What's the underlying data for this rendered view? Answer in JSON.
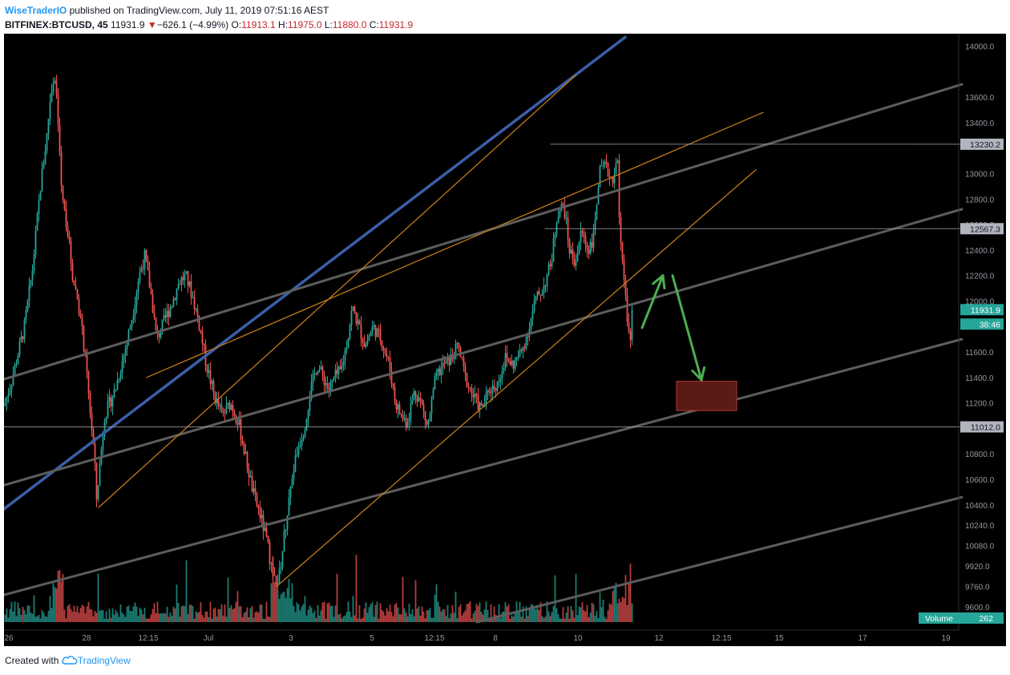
{
  "header": {
    "author": "WiseTraderIO",
    "published_text": "published on TradingView.com, July 11, 2019 07:51:16 AEST",
    "symbol": "BITFINEX:BTCUSD, 45",
    "last": "11931.9",
    "change_arrow": "▼",
    "change": "−626.1 (−4.99%)",
    "o_label": "O:",
    "o_value": "11913.1",
    "h_label": "H:",
    "h_value": "11975.0",
    "l_label": "L:",
    "l_value": "11880.0",
    "c_label": "C:",
    "c_value": "11931.9"
  },
  "footer": {
    "created_with": "Created with",
    "brand": "TradingView",
    "logo_icon": "tradingview-cloud-icon"
  },
  "colors": {
    "background": "#000000",
    "up": "#26a69a",
    "down": "#ef5350",
    "channel_gray": "#5d5d5d",
    "orange": "#c27a1a",
    "blue": "#3a5fa8",
    "arrow": "#4caf50",
    "target_box": "#5a1a16"
  },
  "chart_data": {
    "type": "candlestick",
    "ylim": [
      9480,
      14060
    ],
    "y_ticks": [
      "14000.0",
      "13600.0",
      "13400.0",
      "13000.0",
      "12800.0",
      "12600.0",
      "12400.0",
      "12200.0",
      "12000.0",
      "11800.0",
      "11600.0",
      "11400.0",
      "11200.0",
      "11000.0",
      "10800.0",
      "10600.0",
      "10400.0",
      "10240.0",
      "10080.0",
      "9920.0",
      "9760.0",
      "9600.0"
    ],
    "x_ticks": [
      "26",
      "28",
      "12:15",
      "Jul",
      "3",
      "5",
      "12:15",
      "8",
      "10",
      "12",
      "12:15",
      "15",
      "17",
      "19"
    ],
    "price_labels": [
      {
        "text": "13230.2",
        "value": 13230.2,
        "kind": "level"
      },
      {
        "text": "12567.3",
        "value": 12567.3,
        "kind": "level"
      },
      {
        "text": "11012.0",
        "value": 11012.0,
        "kind": "level"
      },
      {
        "text": "11931.9",
        "value": 11931.9,
        "kind": "last"
      },
      {
        "text": "38:46",
        "kind": "countdown"
      }
    ],
    "volume": {
      "label": "Volume",
      "value": "262"
    },
    "candle_path": [
      [
        0,
        11180
      ],
      [
        10,
        11400
      ],
      [
        25,
        11800
      ],
      [
        35,
        12250
      ],
      [
        45,
        12900
      ],
      [
        53,
        13300
      ],
      [
        58,
        13650
      ],
      [
        62,
        13800
      ],
      [
        66,
        13500
      ],
      [
        72,
        12800
      ],
      [
        78,
        12600
      ],
      [
        85,
        12200
      ],
      [
        92,
        12000
      ],
      [
        100,
        11600
      ],
      [
        106,
        11200
      ],
      [
        112,
        10800
      ],
      [
        115,
        10450
      ],
      [
        125,
        11100
      ],
      [
        138,
        11300
      ],
      [
        150,
        11600
      ],
      [
        160,
        11900
      ],
      [
        168,
        12200
      ],
      [
        175,
        12350
      ],
      [
        183,
        12050
      ],
      [
        190,
        11700
      ],
      [
        200,
        11850
      ],
      [
        210,
        12000
      ],
      [
        218,
        12150
      ],
      [
        226,
        12200
      ],
      [
        234,
        12050
      ],
      [
        242,
        11850
      ],
      [
        252,
        11500
      ],
      [
        262,
        11250
      ],
      [
        272,
        11100
      ],
      [
        282,
        11200
      ],
      [
        292,
        11050
      ],
      [
        300,
        10800
      ],
      [
        310,
        10500
      ],
      [
        320,
        10300
      ],
      [
        328,
        10100
      ],
      [
        335,
        9850
      ],
      [
        342,
        9800
      ],
      [
        350,
        10200
      ],
      [
        358,
        10600
      ],
      [
        366,
        10850
      ],
      [
        374,
        11000
      ],
      [
        382,
        11300
      ],
      [
        390,
        11500
      ],
      [
        398,
        11400
      ],
      [
        405,
        11300
      ],
      [
        412,
        11400
      ],
      [
        420,
        11450
      ],
      [
        428,
        11700
      ],
      [
        434,
        11950
      ],
      [
        442,
        11800
      ],
      [
        450,
        11650
      ],
      [
        460,
        11800
      ],
      [
        470,
        11700
      ],
      [
        480,
        11500
      ],
      [
        488,
        11200
      ],
      [
        495,
        11100
      ],
      [
        502,
        11050
      ],
      [
        512,
        11300
      ],
      [
        520,
        11200
      ],
      [
        528,
        11000
      ],
      [
        538,
        11400
      ],
      [
        548,
        11500
      ],
      [
        558,
        11550
      ],
      [
        566,
        11650
      ],
      [
        575,
        11400
      ],
      [
        585,
        11250
      ],
      [
        595,
        11150
      ],
      [
        605,
        11300
      ],
      [
        615,
        11350
      ],
      [
        625,
        11550
      ],
      [
        635,
        11500
      ],
      [
        645,
        11600
      ],
      [
        655,
        11800
      ],
      [
        662,
        12000
      ],
      [
        672,
        12100
      ],
      [
        682,
        12300
      ],
      [
        690,
        12700
      ],
      [
        698,
        12750
      ],
      [
        705,
        12400
      ],
      [
        712,
        12300
      ],
      [
        720,
        12550
      ],
      [
        728,
        12400
      ],
      [
        735,
        12500
      ],
      [
        742,
        13000
      ],
      [
        750,
        13050
      ],
      [
        758,
        12950
      ],
      [
        765,
        13100
      ],
      [
        768,
        12500
      ],
      [
        772,
        12200
      ],
      [
        776,
        11950
      ],
      [
        780,
        11700
      ],
      [
        784,
        11750
      ]
    ],
    "lines": [
      {
        "name": "upper-blue-trend",
        "color": "blue",
        "points": [
          [
            -8,
            10330
          ],
          [
            775,
            14070
          ]
        ]
      },
      {
        "name": "gray-channel-1",
        "color": "gray",
        "points": [
          [
            -8,
            11370
          ],
          [
            1195,
            13700
          ]
        ]
      },
      {
        "name": "gray-channel-2",
        "color": "gray",
        "points": [
          [
            -8,
            10540
          ],
          [
            1195,
            12720
          ]
        ]
      },
      {
        "name": "gray-channel-3",
        "color": "gray",
        "points": [
          [
            -8,
            9680
          ],
          [
            1195,
            11700
          ]
        ]
      },
      {
        "name": "gray-channel-4",
        "color": "gray",
        "points": [
          [
            590,
            9480
          ],
          [
            1195,
            10460
          ]
        ]
      },
      {
        "name": "orange-1",
        "color": "orange",
        "points": [
          [
            118,
            10380
          ],
          [
            713,
            13770
          ]
        ]
      },
      {
        "name": "orange-2",
        "color": "orange",
        "points": [
          [
            178,
            11400
          ],
          [
            947,
            13480
          ]
        ]
      },
      {
        "name": "orange-3",
        "color": "orange",
        "points": [
          [
            340,
            9760
          ],
          [
            938,
            13030
          ]
        ]
      },
      {
        "name": "level-13230",
        "color": "level",
        "points": [
          [
            682,
            13230.2
          ],
          [
            1195,
            13230.2
          ]
        ]
      },
      {
        "name": "level-12567",
        "color": "level",
        "points": [
          [
            675,
            12567.3
          ],
          [
            1195,
            12567.3
          ]
        ]
      },
      {
        "name": "level-11012",
        "color": "level",
        "points": [
          [
            0,
            11012
          ],
          [
            1195,
            11012
          ]
        ]
      }
    ],
    "arrows": [
      {
        "name": "arrow-up",
        "from": [
          796,
          11790
        ],
        "to": [
          822,
          12200
        ]
      },
      {
        "name": "arrow-down",
        "from": [
          834,
          12200
        ],
        "to": [
          870,
          11380
        ]
      }
    ],
    "target_zone": {
      "x1": 839,
      "x2": 914,
      "y1": 11140,
      "y2": 11370
    }
  }
}
